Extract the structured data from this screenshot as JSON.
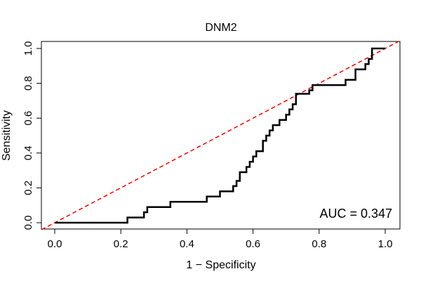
{
  "chart_data": {
    "type": "line",
    "title": "DNM2",
    "xlabel": "1 − Specificity",
    "ylabel": "Sensitivity",
    "xlim": [
      0.0,
      1.0
    ],
    "ylim": [
      0.0,
      1.0
    ],
    "xticks": [
      "0.0",
      "0.2",
      "0.4",
      "0.6",
      "0.8",
      "1.0"
    ],
    "yticks": [
      "0.0",
      "0.2",
      "0.4",
      "0.6",
      "0.8",
      "1.0"
    ],
    "grid": false,
    "annotation": "AUC = 0.347",
    "reference_line": {
      "x": [
        0.0,
        1.0
      ],
      "y": [
        0.0,
        1.0
      ],
      "color": "#ff0000",
      "style": "dashed"
    },
    "series": [
      {
        "color": "#000000",
        "x": [
          0.0,
          0.22,
          0.22,
          0.27,
          0.27,
          0.28,
          0.28,
          0.35,
          0.35,
          0.46,
          0.46,
          0.5,
          0.5,
          0.54,
          0.54,
          0.55,
          0.55,
          0.56,
          0.56,
          0.58,
          0.58,
          0.59,
          0.59,
          0.6,
          0.6,
          0.61,
          0.61,
          0.63,
          0.63,
          0.64,
          0.64,
          0.65,
          0.65,
          0.66,
          0.66,
          0.68,
          0.68,
          0.7,
          0.7,
          0.71,
          0.71,
          0.72,
          0.72,
          0.73,
          0.73,
          0.77,
          0.77,
          0.78,
          0.78,
          0.88,
          0.88,
          0.91,
          0.91,
          0.94,
          0.94,
          0.95,
          0.95,
          0.96,
          0.96,
          1.0
        ],
        "y": [
          0.0,
          0.0,
          0.03,
          0.03,
          0.06,
          0.06,
          0.09,
          0.09,
          0.12,
          0.12,
          0.15,
          0.15,
          0.18,
          0.18,
          0.21,
          0.21,
          0.24,
          0.24,
          0.29,
          0.29,
          0.32,
          0.32,
          0.35,
          0.35,
          0.38,
          0.38,
          0.41,
          0.41,
          0.47,
          0.47,
          0.5,
          0.5,
          0.53,
          0.53,
          0.56,
          0.56,
          0.59,
          0.59,
          0.62,
          0.62,
          0.65,
          0.65,
          0.68,
          0.68,
          0.74,
          0.74,
          0.76,
          0.76,
          0.79,
          0.79,
          0.82,
          0.82,
          0.88,
          0.88,
          0.91,
          0.91,
          0.94,
          0.94,
          1.0,
          1.0
        ]
      }
    ]
  }
}
